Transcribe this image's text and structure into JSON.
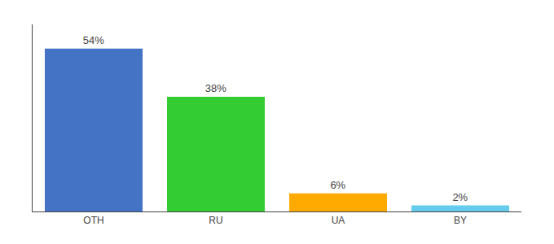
{
  "chart_data": {
    "type": "bar",
    "categories": [
      "OTH",
      "RU",
      "UA",
      "BY"
    ],
    "values": [
      54,
      38,
      6,
      2
    ],
    "value_labels": [
      "54%",
      "38%",
      "6%",
      "2%"
    ],
    "colors": [
      "#4472c4",
      "#33cc33",
      "#ffaa00",
      "#66ccee"
    ],
    "ylim": [
      0,
      62
    ],
    "data_labels": true,
    "grid": false,
    "tick_labels": "x"
  }
}
